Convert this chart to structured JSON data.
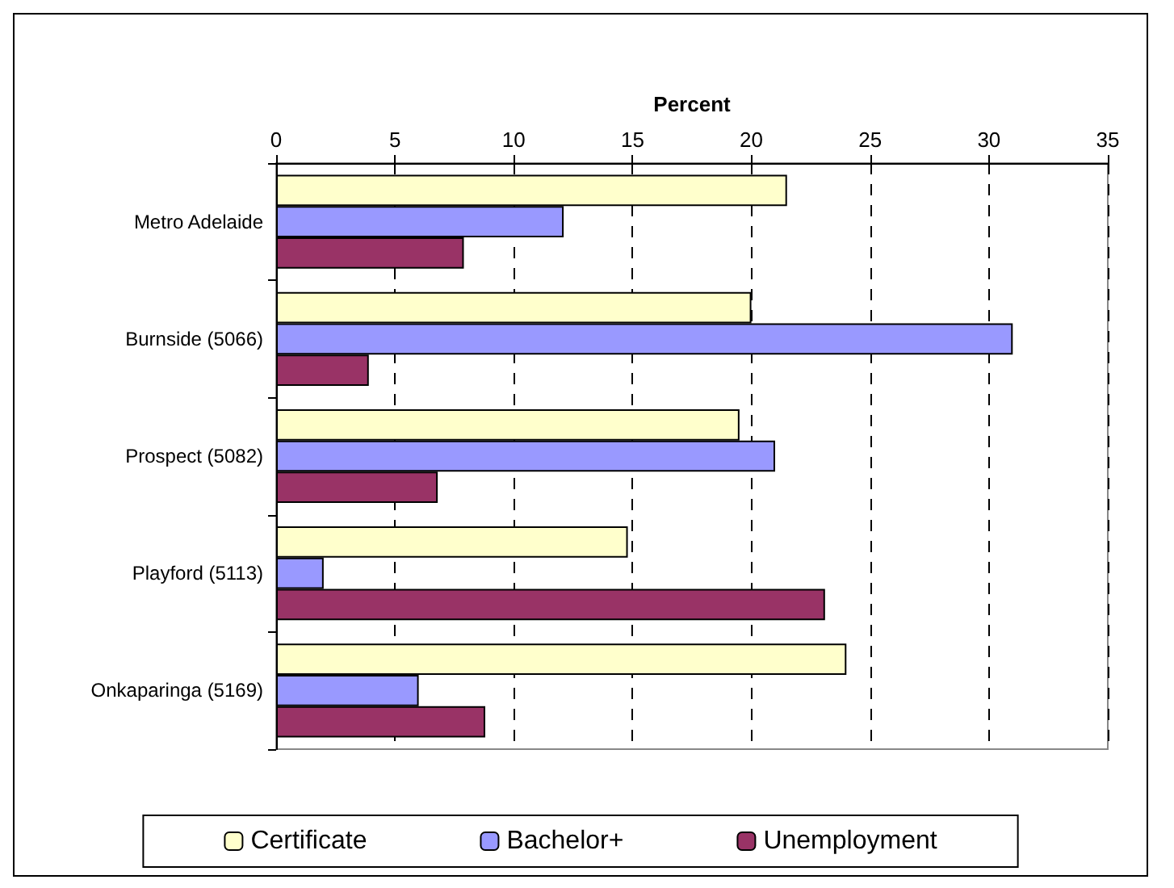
{
  "chart_data": {
    "type": "bar",
    "orientation": "horizontal",
    "xlabel": "Percent",
    "categories": [
      "Metro Adelaide",
      "Burnside (5066)",
      "Prospect (5082)",
      "Playford (5113)",
      "Onkaparinga (5169)"
    ],
    "series": [
      {
        "name": "Certificate",
        "color": "#ffffcc",
        "values": [
          21.5,
          20.0,
          19.5,
          14.8,
          24.0
        ]
      },
      {
        "name": "Bachelor+",
        "color": "#9999ff",
        "values": [
          12.1,
          31.0,
          21.0,
          2.0,
          6.0
        ]
      },
      {
        "name": "Unemployment",
        "color": "#993366",
        "values": [
          7.9,
          3.9,
          6.8,
          23.1,
          8.8
        ]
      }
    ],
    "xlim": [
      0,
      35
    ],
    "xticks": [
      0,
      5,
      10,
      15,
      20,
      25,
      30,
      35
    ],
    "grid": "x",
    "legend": "bottom"
  }
}
